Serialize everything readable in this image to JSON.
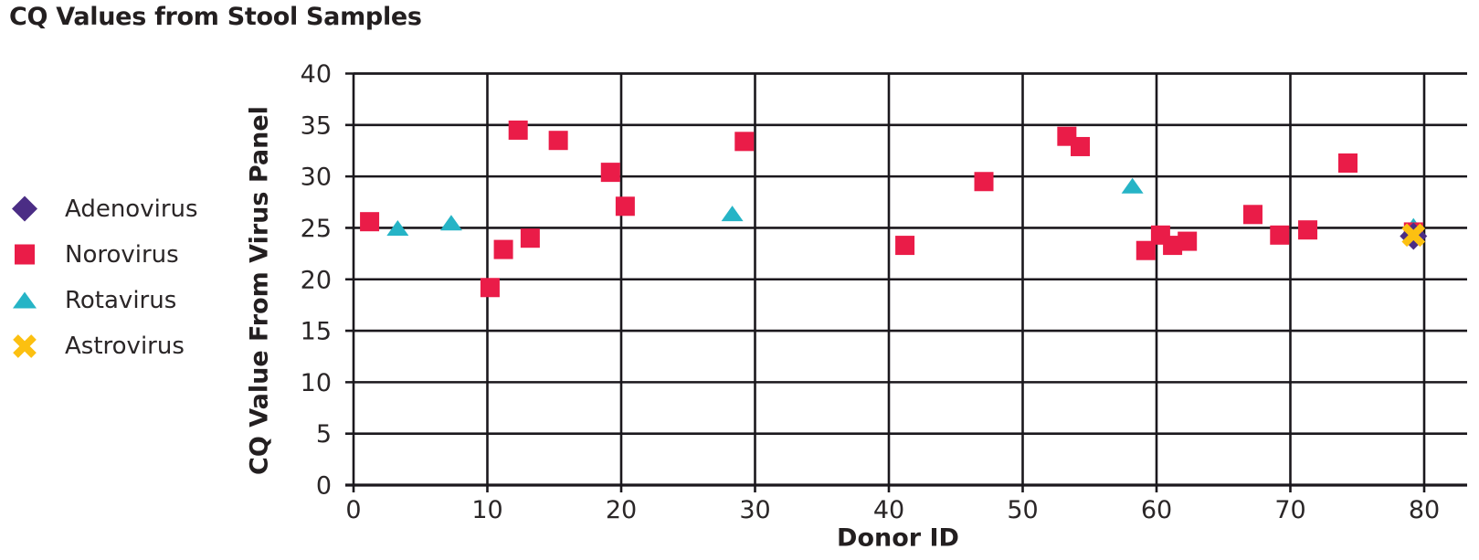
{
  "chart_data": {
    "type": "scatter",
    "title": "CQ Values from Stool Samples",
    "xlabel": "Donor ID",
    "ylabel": "CQ Value From Virus Panel",
    "xlim": [
      0,
      83
    ],
    "ylim": [
      0,
      40
    ],
    "xticks": [
      0,
      10,
      20,
      30,
      40,
      50,
      60,
      70,
      80
    ],
    "yticks": [
      0,
      5,
      10,
      15,
      20,
      25,
      30,
      35,
      40
    ],
    "grid": true,
    "legend_position": "left",
    "background_color": "#ffffff",
    "gridline_color": "#1b181d",
    "text_color": "#231f20",
    "series": [
      {
        "name": "Adenovirus",
        "marker": "diamond",
        "color": "#4b2d85",
        "zorder": 3,
        "points": [
          [
            79.2,
            24.2
          ]
        ]
      },
      {
        "name": "Norovirus",
        "marker": "square",
        "color": "#ea1c48",
        "zorder": 2,
        "points": [
          [
            1.2,
            25.6
          ],
          [
            10.2,
            19.2
          ],
          [
            11.2,
            22.9
          ],
          [
            12.3,
            34.5
          ],
          [
            13.2,
            24.0
          ],
          [
            15.3,
            33.5
          ],
          [
            19.2,
            30.4
          ],
          [
            20.3,
            27.1
          ],
          [
            29.2,
            33.4
          ],
          [
            41.2,
            23.3
          ],
          [
            47.1,
            29.5
          ],
          [
            53.3,
            33.9
          ],
          [
            54.3,
            32.9
          ],
          [
            59.2,
            22.8
          ],
          [
            60.3,
            24.3
          ],
          [
            61.2,
            23.3
          ],
          [
            62.3,
            23.7
          ],
          [
            67.2,
            26.3
          ],
          [
            69.2,
            24.3
          ],
          [
            71.3,
            24.8
          ],
          [
            74.3,
            31.3
          ],
          [
            79.2,
            24.6
          ]
        ]
      },
      {
        "name": "Rotavirus",
        "marker": "triangle",
        "color": "#26b4c6",
        "zorder": 1,
        "points": [
          [
            3.3,
            25.0
          ],
          [
            7.3,
            25.5
          ],
          [
            28.3,
            26.4
          ],
          [
            58.2,
            29.1
          ],
          [
            79.2,
            25.2
          ]
        ]
      },
      {
        "name": "Astrovirus",
        "marker": "x",
        "color": "#fcc011",
        "zorder": 4,
        "points": [
          [
            79.2,
            24.3
          ]
        ]
      }
    ]
  }
}
